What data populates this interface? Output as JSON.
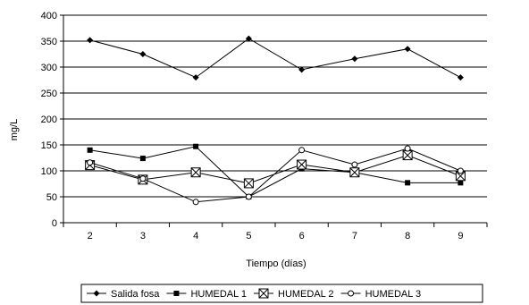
{
  "chart_data": {
    "type": "line",
    "title": "",
    "xlabel": "Tiempo (días)",
    "ylabel": "mg/L",
    "categories": [
      "2",
      "3",
      "4",
      "5",
      "6",
      "7",
      "8",
      "9"
    ],
    "ylim": [
      0,
      400
    ],
    "yticks": [
      "0",
      "50",
      "100",
      "150",
      "200",
      "250",
      "300",
      "350",
      "400"
    ],
    "grid": "horizontal",
    "legend_position": "bottom",
    "series": [
      {
        "name": "Salida fosa",
        "marker": "diamond-filled",
        "color": "#000000",
        "values": [
          352,
          325,
          280,
          355,
          295,
          316,
          335,
          280
        ]
      },
      {
        "name": "HUMEDAL 1",
        "marker": "square-filled",
        "color": "#000000",
        "values": [
          140,
          124,
          147,
          50,
          104,
          97,
          77,
          77
        ]
      },
      {
        "name": "HUMEDAL 2",
        "marker": "square-x-open",
        "color": "#000000",
        "values": [
          111,
          83,
          97,
          76,
          112,
          97,
          130,
          90
        ]
      },
      {
        "name": "HUMEDAL 3",
        "marker": "circle-open",
        "color": "#000000",
        "values": [
          116,
          85,
          40,
          50,
          140,
          112,
          143,
          100
        ]
      }
    ]
  }
}
